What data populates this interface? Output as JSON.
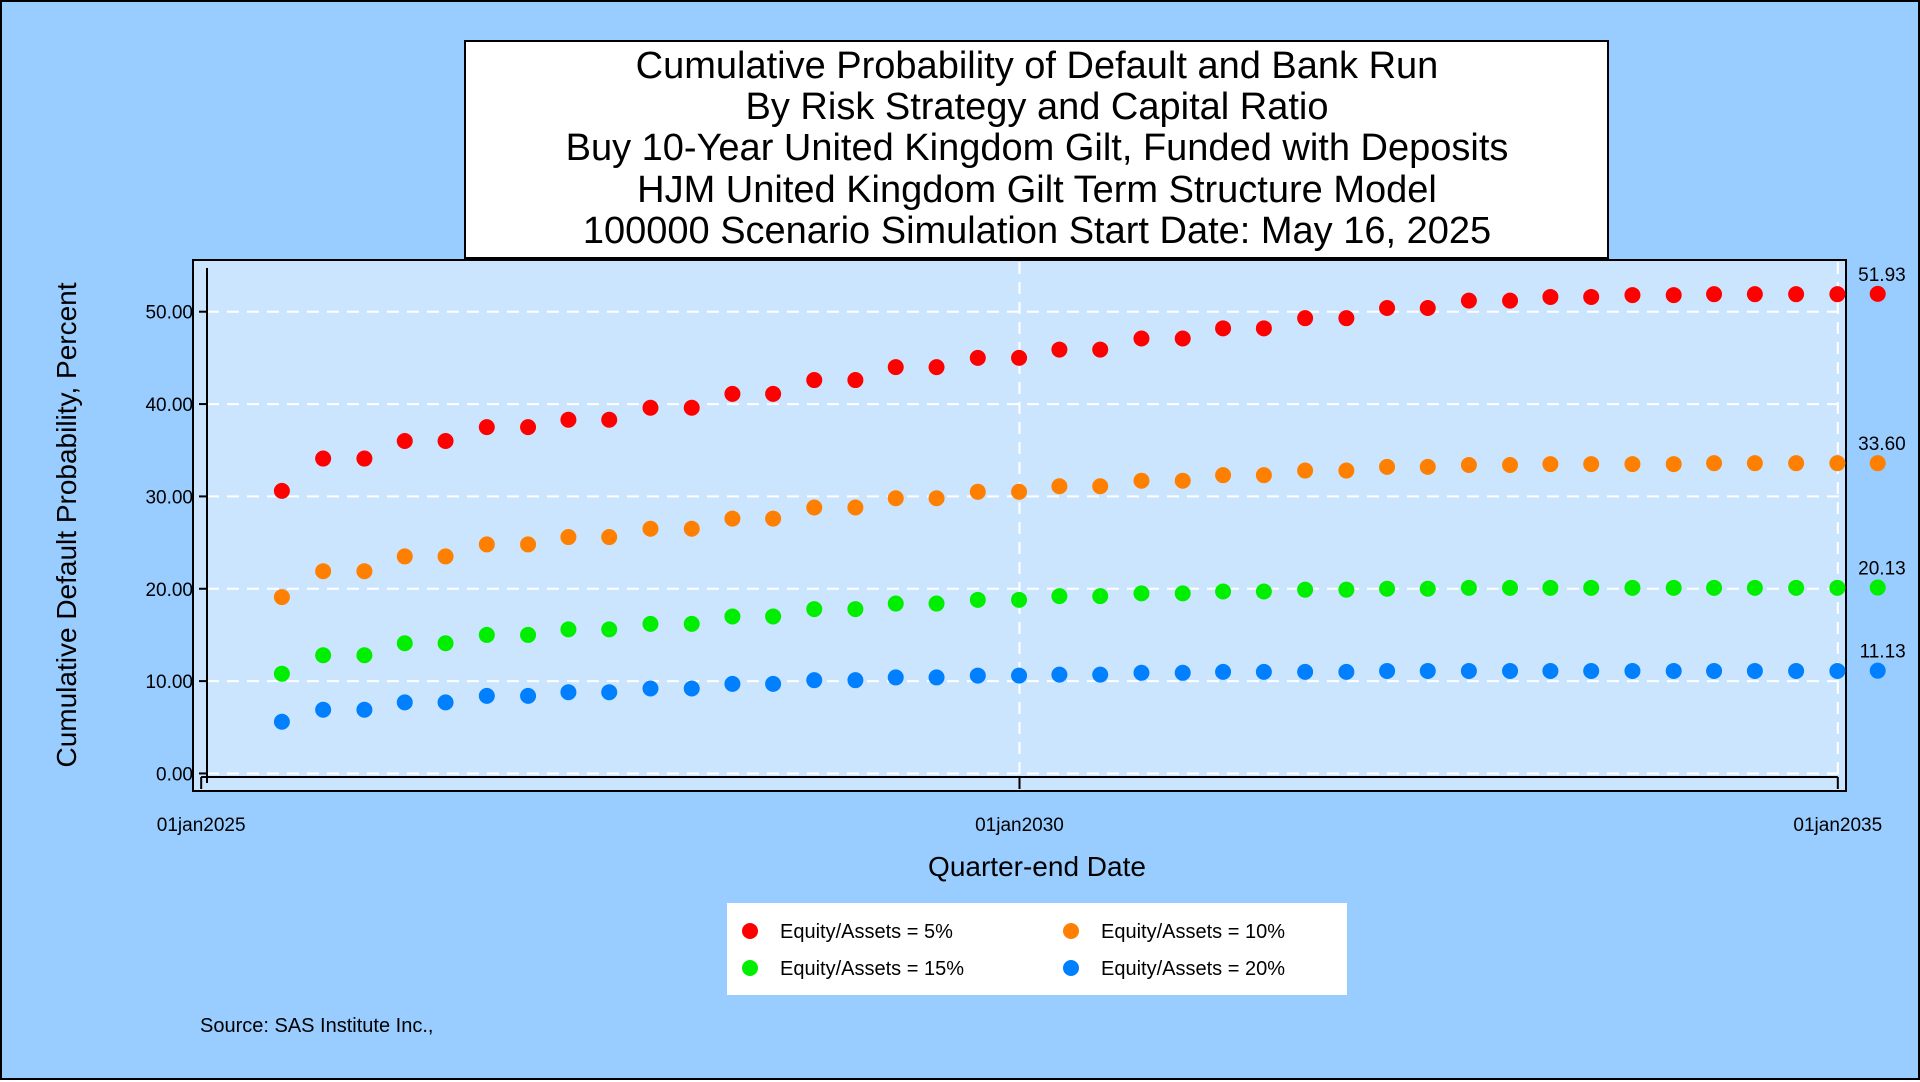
{
  "chart_data": {
    "type": "scatter",
    "title_lines": [
      "Cumulative Probability of Default and Bank Run",
      "By Risk Strategy and Capital Ratio",
      "Buy 10-Year United Kingdom Gilt, Funded with Deposits",
      "HJM United Kingdom Gilt Term Structure Model",
      "100000 Scenario Simulation Start Date: May 16, 2025"
    ],
    "xlabel": "Quarter-end Date",
    "ylabel": "Cumulative Default Probability, Percent",
    "x_ticks": [
      "01jan2025",
      "01jan2030",
      "01jan2035"
    ],
    "x_range_years": [
      2024.95,
      2035.05
    ],
    "y_ticks": [
      "0.00",
      "10.00",
      "20.00",
      "30.00",
      "40.00",
      "50.00"
    ],
    "ylim": [
      -1.9,
      55.6
    ],
    "grid": "dashed",
    "legend_position": "bottom",
    "source": "Source: SAS Institute Inc.,",
    "x_quarter_ends": [
      "2025-06-30",
      "2025-09-30",
      "2025-12-31",
      "2026-03-31",
      "2026-06-30",
      "2026-09-30",
      "2026-12-31",
      "2027-03-31",
      "2027-06-30",
      "2027-09-30",
      "2027-12-31",
      "2028-03-31",
      "2028-06-30",
      "2028-09-30",
      "2028-12-31",
      "2029-03-31",
      "2029-06-30",
      "2029-09-30",
      "2029-12-31",
      "2030-03-31",
      "2030-06-30",
      "2030-09-30",
      "2030-12-31",
      "2031-03-31",
      "2031-06-30",
      "2031-09-30",
      "2031-12-31",
      "2032-03-31",
      "2032-06-30",
      "2032-09-30",
      "2032-12-31",
      "2033-03-31",
      "2033-06-30",
      "2033-09-30",
      "2033-12-31",
      "2034-03-31",
      "2034-06-30",
      "2034-09-30",
      "2034-12-31",
      "2035-03-31"
    ],
    "series": [
      {
        "name": "Equity/Assets = 5%",
        "color": "#ff0000",
        "end_label": "51.93",
        "values": [
          30.6,
          34.1,
          34.1,
          36.0,
          36.0,
          37.5,
          37.5,
          38.3,
          38.3,
          39.6,
          39.6,
          41.1,
          41.1,
          42.6,
          42.6,
          44.0,
          44.0,
          45.0,
          45.0,
          45.9,
          45.9,
          47.1,
          47.1,
          48.2,
          48.2,
          49.3,
          49.3,
          50.4,
          50.4,
          51.2,
          51.2,
          51.6,
          51.6,
          51.8,
          51.8,
          51.9,
          51.9,
          51.9,
          51.9,
          51.93
        ]
      },
      {
        "name": "Equity/Assets = 10%",
        "color": "#ff8000",
        "end_label": "33.60",
        "values": [
          19.1,
          21.9,
          21.9,
          23.5,
          23.5,
          24.8,
          24.8,
          25.6,
          25.6,
          26.5,
          26.5,
          27.6,
          27.6,
          28.8,
          28.8,
          29.8,
          29.8,
          30.5,
          30.5,
          31.1,
          31.1,
          31.7,
          31.7,
          32.3,
          32.3,
          32.8,
          32.8,
          33.2,
          33.2,
          33.4,
          33.4,
          33.5,
          33.5,
          33.5,
          33.5,
          33.6,
          33.6,
          33.6,
          33.6,
          33.6
        ]
      },
      {
        "name": "Equity/Assets = 15%",
        "color": "#00ee00",
        "end_label": "20.13",
        "values": [
          10.8,
          12.8,
          12.8,
          14.1,
          14.1,
          15.0,
          15.0,
          15.6,
          15.6,
          16.2,
          16.2,
          17.0,
          17.0,
          17.8,
          17.8,
          18.4,
          18.4,
          18.8,
          18.8,
          19.2,
          19.2,
          19.5,
          19.5,
          19.7,
          19.7,
          19.9,
          19.9,
          20.0,
          20.0,
          20.1,
          20.1,
          20.1,
          20.1,
          20.1,
          20.1,
          20.1,
          20.1,
          20.1,
          20.1,
          20.13
        ]
      },
      {
        "name": "Equity/Assets = 20%",
        "color": "#0080ff",
        "end_label": "11.13",
        "values": [
          5.6,
          6.9,
          6.9,
          7.7,
          7.7,
          8.4,
          8.4,
          8.8,
          8.8,
          9.2,
          9.2,
          9.7,
          9.7,
          10.1,
          10.1,
          10.4,
          10.4,
          10.6,
          10.6,
          10.7,
          10.7,
          10.9,
          10.9,
          11.0,
          11.0,
          11.0,
          11.0,
          11.1,
          11.1,
          11.1,
          11.1,
          11.1,
          11.1,
          11.1,
          11.1,
          11.1,
          11.1,
          11.1,
          11.1,
          11.13
        ]
      }
    ]
  },
  "colors": {
    "page_background": "#99ccff",
    "plot_background": "#cce5ff",
    "grid": "#ffffff"
  }
}
